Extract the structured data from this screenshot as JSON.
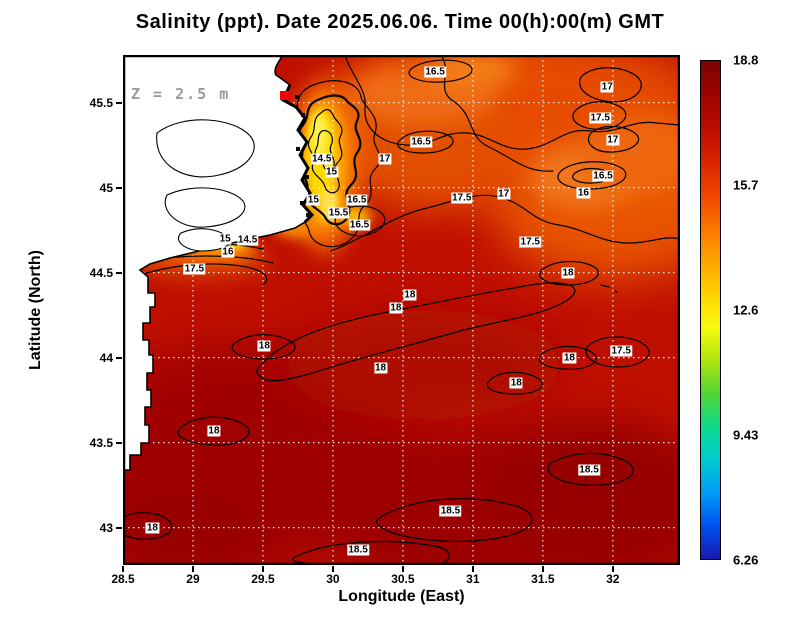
{
  "figure": {
    "title": "Salinity (ppt). Date 2025.06.06. Time 00(h):00(m) GMT",
    "depth_annotation": "Z = 2.5 m"
  },
  "axes": {
    "x_label": "Longitude (East)",
    "y_label": "Latitude (North)",
    "x_ticks": [
      "28.5",
      "29",
      "29.5",
      "30",
      "30.5",
      "31",
      "31.5",
      "32"
    ],
    "y_ticks": [
      "45.5",
      "45",
      "44.5",
      "44",
      "43.5",
      "43"
    ]
  },
  "colorbar": {
    "tick_labels": [
      "18.8",
      "15.7",
      "12.6",
      "9.43",
      "6.26"
    ],
    "gradient_top_to_bottom": [
      "#7a0403",
      "#9c0400",
      "#bb0c00",
      "#d92300",
      "#ef4400",
      "#fb7300",
      "#ffa300",
      "#ffd200",
      "#f8fb0d",
      "#b0e60f",
      "#52d633",
      "#0ed98a",
      "#00cbd0",
      "#009cf5",
      "#0050f0",
      "#1a1aae"
    ]
  },
  "colors": {
    "sea_base": "#bf0f00",
    "sea_deep_south": "#9c0300",
    "sea_northeast_orange": "#e85200",
    "plume_core_yellow": "#ffd900",
    "land": "#ffffff",
    "grid": "#ffffff",
    "station_marker": "#f00000",
    "depth_note_gray": "#9a9a9a"
  },
  "chart_data": {
    "type": "heatmap",
    "variable": "Salinity",
    "units": "ppt",
    "date": "2025.06.06",
    "time_gmt": "00(h):00(m)",
    "depth_m": 2.5,
    "extent": {
      "lon_min": 28.5,
      "lon_max": 32.48,
      "lat_min": 42.78,
      "lat_max": 45.78
    },
    "value_range": [
      6.26,
      18.8
    ],
    "colorbar_ticks": [
      18.8,
      15.7,
      12.6,
      9.43,
      6.26
    ],
    "contour_levels": [
      14.5,
      15,
      15.5,
      16,
      16.5,
      17,
      17.5,
      18,
      18.5
    ],
    "contour_labels": [
      {
        "value": "16.5",
        "lon": 30.73,
        "lat": 45.68
      },
      {
        "value": "17",
        "lon": 31.96,
        "lat": 45.59
      },
      {
        "value": "17.5",
        "lon": 31.91,
        "lat": 45.41
      },
      {
        "value": "17",
        "lon": 32.0,
        "lat": 45.28
      },
      {
        "value": "16.5",
        "lon": 30.63,
        "lat": 45.27
      },
      {
        "value": "14.5",
        "lon": 29.92,
        "lat": 45.17
      },
      {
        "value": "17",
        "lon": 30.37,
        "lat": 45.17
      },
      {
        "value": "16.5",
        "lon": 31.93,
        "lat": 45.07
      },
      {
        "value": "16",
        "lon": 31.79,
        "lat": 44.97
      },
      {
        "value": "15",
        "lon": 29.99,
        "lat": 45.09
      },
      {
        "value": "15",
        "lon": 29.86,
        "lat": 44.93
      },
      {
        "value": "16.5",
        "lon": 30.17,
        "lat": 44.93
      },
      {
        "value": "15.5",
        "lon": 30.04,
        "lat": 44.85
      },
      {
        "value": "17.5",
        "lon": 30.92,
        "lat": 44.94
      },
      {
        "value": "17",
        "lon": 31.22,
        "lat": 44.96
      },
      {
        "value": "16.5",
        "lon": 30.19,
        "lat": 44.78
      },
      {
        "value": "15",
        "lon": 29.23,
        "lat": 44.7
      },
      {
        "value": "14.5",
        "lon": 29.39,
        "lat": 44.69
      },
      {
        "value": "16",
        "lon": 29.25,
        "lat": 44.62
      },
      {
        "value": "17.5",
        "lon": 31.41,
        "lat": 44.68
      },
      {
        "value": "17.5",
        "lon": 29.01,
        "lat": 44.52
      },
      {
        "value": "18",
        "lon": 31.68,
        "lat": 44.5
      },
      {
        "value": "18",
        "lon": 30.55,
        "lat": 44.37
      },
      {
        "value": "18",
        "lon": 30.45,
        "lat": 44.29
      },
      {
        "value": "18",
        "lon": 29.51,
        "lat": 44.07
      },
      {
        "value": "17.5",
        "lon": 32.06,
        "lat": 44.04
      },
      {
        "value": "18",
        "lon": 31.69,
        "lat": 44.0
      },
      {
        "value": "18",
        "lon": 30.34,
        "lat": 43.94
      },
      {
        "value": "18",
        "lon": 31.31,
        "lat": 43.85
      },
      {
        "value": "18",
        "lon": 29.15,
        "lat": 43.57
      },
      {
        "value": "18.5",
        "lon": 31.83,
        "lat": 43.34
      },
      {
        "value": "18.5",
        "lon": 30.84,
        "lat": 43.1
      },
      {
        "value": "18",
        "lon": 28.71,
        "lat": 43.0
      },
      {
        "value": "18.5",
        "lon": 30.18,
        "lat": 42.87
      }
    ]
  }
}
